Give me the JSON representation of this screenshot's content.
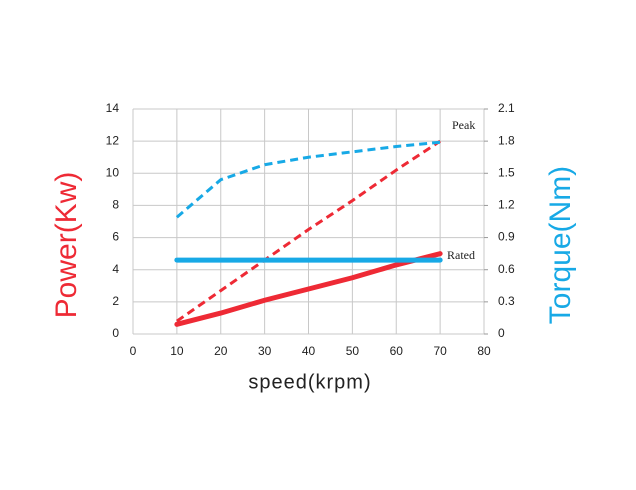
{
  "chart_data": {
    "type": "line",
    "xlabel": "speed(krpm)",
    "ylabel": "Power(Kw)",
    "y2label": "Torque(Nm)",
    "ylabel_color": "#ee2a35",
    "y2label_color": "#17a9e6",
    "annotations": [
      "Peak",
      "Rated"
    ],
    "x": [
      10,
      20,
      30,
      40,
      50,
      60,
      70
    ],
    "xlim": [
      0,
      80
    ],
    "xticks": [
      0,
      10,
      20,
      30,
      40,
      50,
      60,
      70,
      80
    ],
    "ylim": [
      0,
      14
    ],
    "yticks": [
      0,
      2,
      4,
      6,
      8,
      10,
      12,
      14
    ],
    "y2lim": [
      0,
      2.1
    ],
    "y2ticks": [
      0,
      0.3,
      0.6,
      0.9,
      1.2,
      1.5,
      1.8,
      2.1
    ],
    "grid": true,
    "series": [
      {
        "color": "#ee2a35",
        "style": "dashed",
        "values": [
          0.8,
          2.7,
          4.6,
          6.5,
          8.3,
          10.2,
          12.0
        ]
      },
      {
        "color": "#ee2a35",
        "style": "solid",
        "values": [
          0.6,
          1.3,
          2.1,
          2.8,
          3.5,
          4.3,
          5.0
        ]
      },
      {
        "color": "#17a9e6",
        "style": "dashed",
        "axis": "y2",
        "values": [
          1.09,
          1.44,
          1.58,
          1.65,
          1.7,
          1.75,
          1.79
        ]
      },
      {
        "color": "#17a9e6",
        "style": "solid",
        "axis": "y2",
        "values": [
          0.69,
          0.69,
          0.69,
          0.69,
          0.69,
          0.69,
          0.69
        ]
      }
    ]
  }
}
